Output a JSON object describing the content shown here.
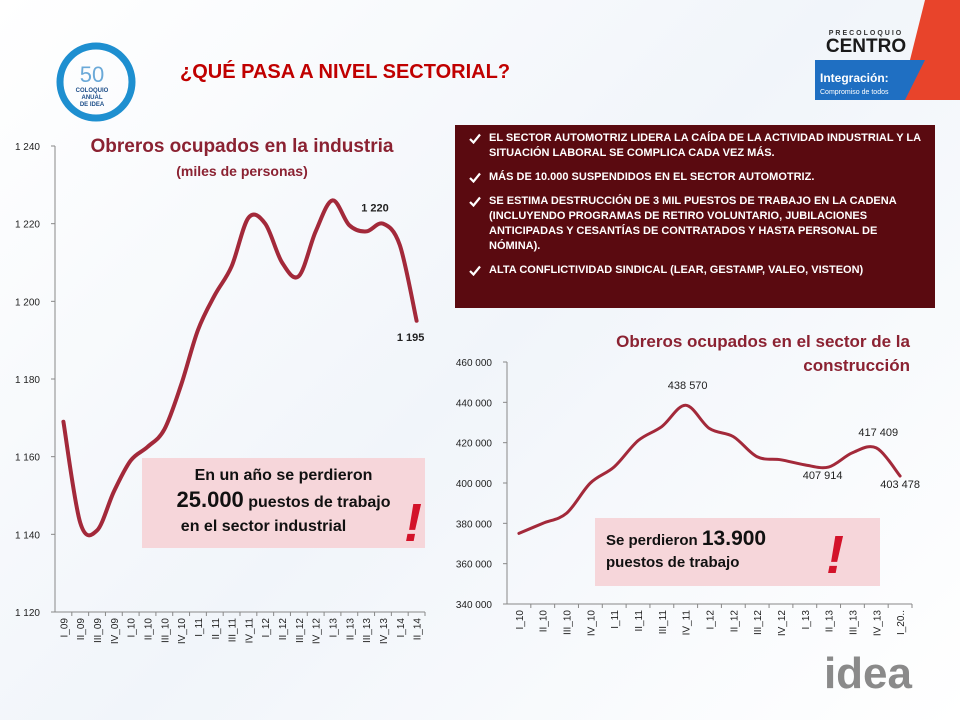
{
  "header": {
    "title": "¿QUÉ PASA A NIVEL SECTORIAL?"
  },
  "logos": {
    "anniversary": "50",
    "event": [
      "COLOQUIO",
      "ANUAL",
      "DE IDEA"
    ],
    "pre": "PRECOLOQUIO",
    "region": "CENTRO",
    "theme": "Integración:",
    "tagline": "Compromiso de todos",
    "brand": "idea"
  },
  "bullets": [
    "EL SECTOR AUTOMOTRIZ LIDERA LA CAÍDA DE LA ACTIVIDAD INDUSTRIAL Y LA SITUACIÓN LABORAL SE COMPLICA CADA VEZ MÁS.",
    "MÁS DE 10.000 SUSPENDIDOS EN EL SECTOR AUTOMOTRIZ.",
    "SE ESTIMA DESTRUCCIÓN DE 3 MIL PUESTOS DE TRABAJO EN LA CADENA (INCLUYENDO PROGRAMAS DE RETIRO VOLUNTARIO, JUBILACIONES ANTICIPADAS Y CESANTÍAS DE CONTRATADOS Y HASTA PERSONAL DE NÓMINA).",
    "ALTA CONFLICTIVIDAD SINDICAL (LEAR, GESTAMP, VALEO, VISTEON)"
  ],
  "callouts": [
    {
      "pre": "En un año se perdieron",
      "figure": "25.000",
      "post": "puestos de trabajo",
      "end": "en el sector industrial",
      "mark": "!"
    },
    {
      "pre": "Se perdieron",
      "figure": "13.900",
      "post": "puestos de trabajo",
      "mark": "!"
    }
  ],
  "chart_data": [
    {
      "type": "line",
      "title": "Obreros ocupados en la industria",
      "subtitle": "(miles de personas)",
      "color": "#a3293a",
      "categories": [
        "I_09",
        "II_09",
        "III_09",
        "IV_09",
        "I_10",
        "II_10",
        "III_10",
        "IV_10",
        "I_11",
        "II_11",
        "III_11",
        "IV_11",
        "I_12",
        "II_12",
        "III_12",
        "IV_12",
        "I_13",
        "II_13",
        "III_13",
        "IV_13",
        "I_14",
        "II_14"
      ],
      "values": [
        1169,
        1143,
        1141,
        1151,
        1159,
        1162.5,
        1167,
        1178.5,
        1192.6,
        1201.6,
        1209,
        1221.5,
        1220,
        1210,
        1206.5,
        1218,
        1226,
        1219.6,
        1218,
        1220,
        1214.5,
        1195
      ],
      "value_labels": [
        null,
        null,
        null,
        null,
        null,
        null,
        null,
        null,
        null,
        null,
        null,
        null,
        null,
        null,
        null,
        null,
        null,
        null,
        null,
        "1 220",
        null,
        "1 195"
      ],
      "ylim": [
        1120,
        1240
      ],
      "yticks": [
        {
          "value": 1120,
          "label": "1 120"
        },
        {
          "value": 1140,
          "label": "1 140"
        },
        {
          "value": 1160,
          "label": "1 160"
        },
        {
          "value": 1180,
          "label": "1 180"
        },
        {
          "value": 1200,
          "label": "1 200"
        },
        {
          "value": 1220,
          "label": "1 220"
        },
        {
          "value": 1240,
          "label": "1 240"
        }
      ]
    },
    {
      "type": "line",
      "title": "Obreros ocupados en el sector de la construcción",
      "color": "#a3293a",
      "categories": [
        "I_10",
        "II_10",
        "III_10",
        "IV_10",
        "I_11",
        "II_11",
        "III_11",
        "IV_11",
        "I_12",
        "II_12",
        "III_12",
        "IV_12",
        "I_13",
        "II_13",
        "III_13",
        "IV_13",
        "I_20.."
      ],
      "values": [
        375000,
        380000,
        385000,
        400000,
        408000,
        421000,
        428000,
        438570,
        427000,
        423000,
        413000,
        411500,
        409000,
        407914,
        415000,
        417409,
        403478
      ],
      "value_labels": [
        null,
        null,
        null,
        null,
        null,
        null,
        null,
        "438 570",
        null,
        null,
        null,
        null,
        null,
        "407 914",
        null,
        "417 409",
        "403 478"
      ],
      "ylim": [
        340000,
        460000
      ],
      "yticks": [
        {
          "value": 340000,
          "label": "340 000"
        },
        {
          "value": 360000,
          "label": "360 000"
        },
        {
          "value": 380000,
          "label": "380 000"
        },
        {
          "value": 400000,
          "label": "400 000"
        },
        {
          "value": 420000,
          "label": "420 000"
        },
        {
          "value": 440000,
          "label": "440 000"
        },
        {
          "value": 460000,
          "label": "460 000"
        }
      ]
    }
  ]
}
